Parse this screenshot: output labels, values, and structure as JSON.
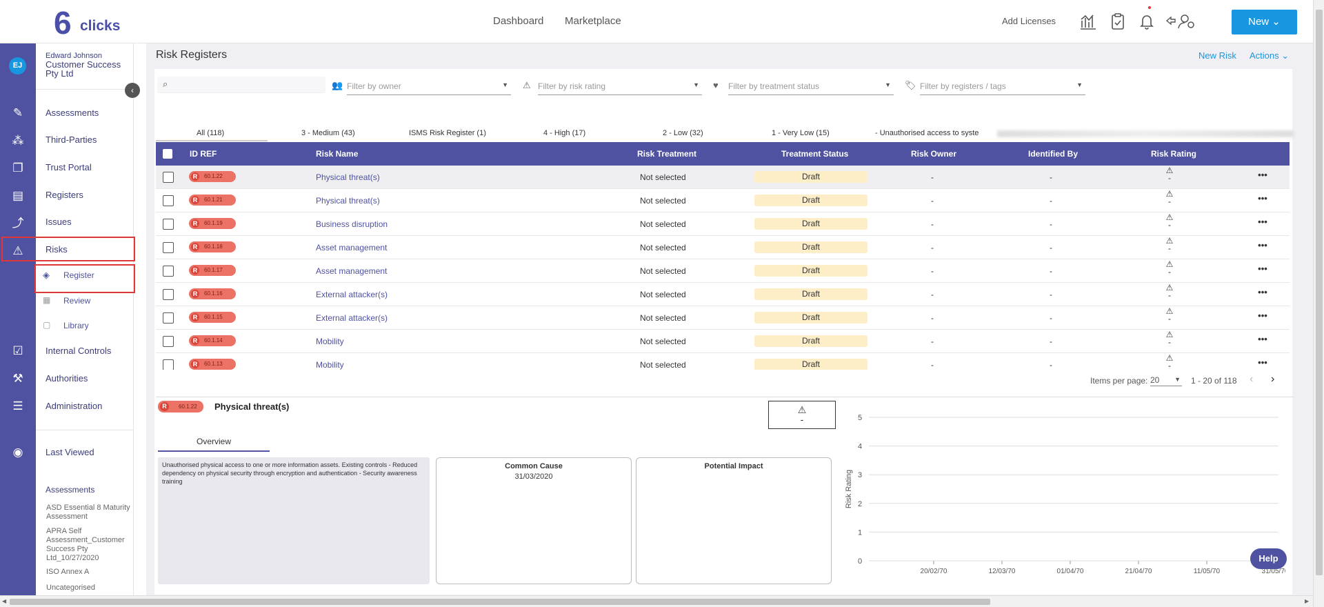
{
  "app": {
    "logo_number": "6",
    "logo_text": "clicks"
  },
  "topnav": {
    "dashboard": "Dashboard",
    "marketplace": "Marketplace",
    "add_licenses": "Add Licenses",
    "new_button": "New ⌄"
  },
  "user": {
    "initials": "EJ",
    "name": "Edward Johnson",
    "company": "Customer Success Pty Ltd"
  },
  "sidebar": {
    "items": [
      "Assessments",
      "Third-Parties",
      "Trust Portal",
      "Registers",
      "Issues",
      "Risks"
    ],
    "sub_items": [
      "Register",
      "Review",
      "Library"
    ],
    "items2": [
      "Internal Controls",
      "Authorities",
      "Administration"
    ],
    "last_viewed": "Last Viewed",
    "recent_heading": "Assessments",
    "recent": [
      "ASD Essential 8 Maturity Assessment",
      "APRA Self Assessment_Customer Success Pty Ltd_10/27/2020",
      "ISO Annex A",
      "Uncategorised"
    ]
  },
  "page": {
    "title": "Risk Registers",
    "new_risk": "New Risk",
    "actions": "Actions ⌄"
  },
  "filters": {
    "search_placeholder": "",
    "owner": "Filter by owner",
    "risk_rating": "Filter by risk rating",
    "treatment_status": "Filter by treatment status",
    "registers_tags": "Filter by registers / tags"
  },
  "tabs": [
    "All (118)",
    "3 - Medium (43)",
    "ISMS Risk Register (1)",
    "4 - High (17)",
    "2 - Low (32)",
    "1 - Very Low (15)",
    "- Unauthorised access to syste"
  ],
  "table": {
    "headers": [
      "ID REF",
      "Risk Name",
      "Risk Treatment",
      "Treatment Status",
      "Risk Owner",
      "Identified By",
      "Risk Rating"
    ],
    "rows": [
      {
        "id": "60.1.22",
        "name": "Physical threat(s)",
        "treatment": "Not selected",
        "status": "Draft",
        "owner": "-",
        "identified": "-",
        "rating": "-"
      },
      {
        "id": "60.1.21",
        "name": "Physical threat(s)",
        "treatment": "Not selected",
        "status": "Draft",
        "owner": "-",
        "identified": "-",
        "rating": "-"
      },
      {
        "id": "60.1.19",
        "name": "Business disruption",
        "treatment": "Not selected",
        "status": "Draft",
        "owner": "-",
        "identified": "-",
        "rating": "-"
      },
      {
        "id": "60.1.18",
        "name": "Asset management",
        "treatment": "Not selected",
        "status": "Draft",
        "owner": "-",
        "identified": "-",
        "rating": "-"
      },
      {
        "id": "60.1.17",
        "name": "Asset management",
        "treatment": "Not selected",
        "status": "Draft",
        "owner": "-",
        "identified": "-",
        "rating": "-"
      },
      {
        "id": "60.1.16",
        "name": "External attacker(s)",
        "treatment": "Not selected",
        "status": "Draft",
        "owner": "-",
        "identified": "-",
        "rating": "-"
      },
      {
        "id": "60.1.15",
        "name": "External attacker(s)",
        "treatment": "Not selected",
        "status": "Draft",
        "owner": "-",
        "identified": "-",
        "rating": "-"
      },
      {
        "id": "60.1.14",
        "name": "Mobility",
        "treatment": "Not selected",
        "status": "Draft",
        "owner": "-",
        "identified": "-",
        "rating": "-"
      },
      {
        "id": "60.1.13",
        "name": "Mobility",
        "treatment": "Not selected",
        "status": "Draft",
        "owner": "-",
        "identified": "-",
        "rating": "-"
      }
    ]
  },
  "pagination": {
    "label": "Items per page:",
    "per_page": "20",
    "range": "1 - 20 of 118"
  },
  "detail": {
    "badge_letter": "R",
    "id": "60.1.22",
    "title": "Physical threat(s)",
    "rating": "-",
    "tab": "Overview",
    "description": "Unauthorised physical access to one or more information assets. Existing controls - Reduced dependency on physical security through encryption and authentication - Security awareness training",
    "common_cause_title": "Common Cause",
    "common_cause_date": "31/03/2020",
    "potential_impact_title": "Potential Impact"
  },
  "chart_data": {
    "type": "line",
    "title": "",
    "ylabel": "Risk Rating",
    "xlabel": "",
    "ylim": [
      0,
      5
    ],
    "yticks": [
      "0",
      "1",
      "2",
      "3",
      "4",
      "5"
    ],
    "x": [
      "20/02/70",
      "12/03/70",
      "01/04/70",
      "21/04/70",
      "11/05/70",
      "31/05/70"
    ],
    "series": []
  },
  "help": "Help",
  "colors": {
    "accent": "#4e52a0",
    "primary": "#1996e0",
    "badge": "#ed7266",
    "draft": "#fdeec8",
    "highlight": "#e03838"
  }
}
